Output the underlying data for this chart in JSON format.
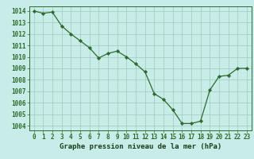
{
  "x": [
    0,
    1,
    2,
    3,
    4,
    5,
    6,
    7,
    8,
    9,
    10,
    11,
    12,
    13,
    14,
    15,
    16,
    17,
    18,
    19,
    20,
    21,
    22,
    23
  ],
  "y": [
    1014.0,
    1013.8,
    1013.9,
    1012.7,
    1012.0,
    1011.4,
    1010.8,
    1009.9,
    1010.3,
    1010.5,
    1010.0,
    1009.4,
    1008.7,
    1006.8,
    1006.3,
    1005.4,
    1004.2,
    1004.2,
    1004.4,
    1007.1,
    1008.3,
    1008.4,
    1009.0,
    1009.0
  ],
  "line_color": "#2d6a2d",
  "marker_color": "#2d6a2d",
  "bg_color": "#c8ece8",
  "grid_color": "#a0c8c0",
  "xlabel": "Graphe pression niveau de la mer (hPa)",
  "xlabel_color": "#1a3d1a",
  "ylabel_ticks": [
    1004,
    1005,
    1006,
    1007,
    1008,
    1009,
    1010,
    1011,
    1012,
    1013,
    1014
  ],
  "ylim": [
    1003.6,
    1014.4
  ],
  "xlim": [
    -0.5,
    23.5
  ],
  "xticks": [
    0,
    1,
    2,
    3,
    4,
    5,
    6,
    7,
    8,
    9,
    10,
    11,
    12,
    13,
    14,
    15,
    16,
    17,
    18,
    19,
    20,
    21,
    22,
    23
  ],
  "tick_color": "#2d6a2d",
  "font_size_label": 6.5,
  "font_size_tick": 5.5
}
